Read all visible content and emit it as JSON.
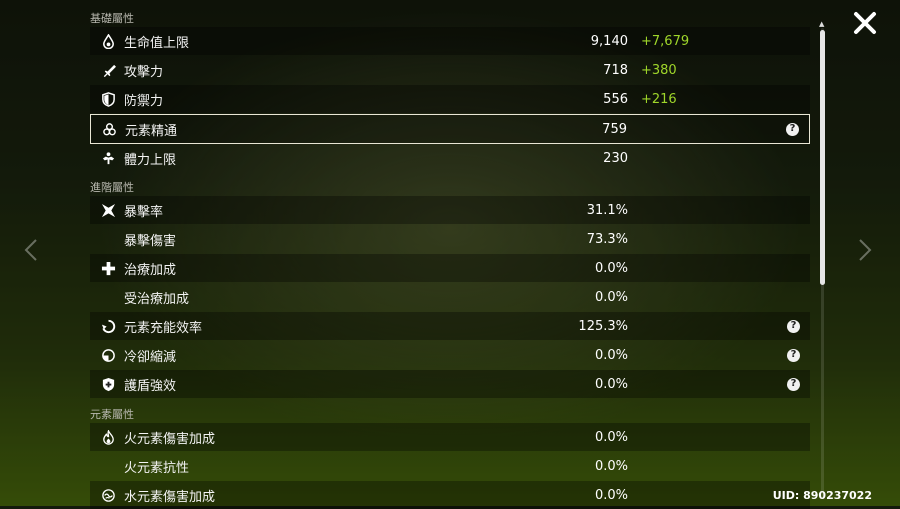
{
  "sections": {
    "base": "基礎屬性",
    "advanced": "進階屬性",
    "elemental": "元素屬性"
  },
  "base_stats": [
    {
      "label": "生命值上限",
      "value": "9,140",
      "bonus": "+7,679",
      "icon": "hp-drop-icon"
    },
    {
      "label": "攻擊力",
      "value": "718",
      "bonus": "+380",
      "icon": "sword-icon"
    },
    {
      "label": "防禦力",
      "value": "556",
      "bonus": "+216",
      "icon": "shield-icon"
    },
    {
      "label": "元素精通",
      "value": "759",
      "icon": "elemental-mastery-icon"
    },
    {
      "label": "體力上限",
      "value": "230",
      "icon": "stamina-icon"
    }
  ],
  "advanced_stats": [
    {
      "label": "暴擊率",
      "value": "31.1%",
      "icon": "crit-star-icon"
    },
    {
      "label": "暴擊傷害",
      "value": "73.3%"
    },
    {
      "label": "治療加成",
      "value": "0.0%",
      "icon": "healing-cross-icon"
    },
    {
      "label": "受治療加成",
      "value": "0.0%"
    },
    {
      "label": "元素充能效率",
      "value": "125.3%",
      "icon": "energy-recharge-icon"
    },
    {
      "label": "冷卻縮減",
      "value": "0.0%",
      "icon": "cooldown-icon"
    },
    {
      "label": "護盾強效",
      "value": "0.0%",
      "icon": "shield-strength-icon"
    }
  ],
  "elemental_stats": [
    {
      "label": "火元素傷害加成",
      "value": "0.0%",
      "icon": "pyro-icon"
    },
    {
      "label": "火元素抗性",
      "value": "0.0%"
    },
    {
      "label": "水元素傷害加成",
      "value": "0.0%",
      "icon": "hydro-icon"
    }
  ],
  "help_glyph": "?",
  "uid_text": "UID: 890237022",
  "colors": {
    "bonus": "#9fd62a",
    "selected_border": "#e9e6d5"
  }
}
